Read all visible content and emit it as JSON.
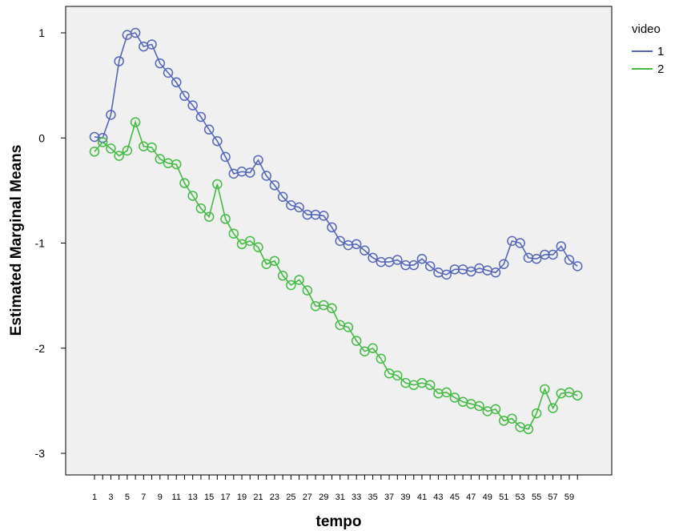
{
  "chart_data": {
    "type": "line",
    "xlabel": "tempo",
    "ylabel": "Estimated Marginal Means",
    "ylim": [
      -3.35,
      1.25
    ],
    "yticks": [
      1,
      0,
      -1,
      -2,
      -3
    ],
    "x": [
      1,
      2,
      3,
      4,
      5,
      6,
      7,
      8,
      9,
      10,
      11,
      12,
      13,
      14,
      15,
      16,
      17,
      18,
      19,
      20,
      21,
      22,
      23,
      24,
      25,
      26,
      27,
      28,
      29,
      30,
      31,
      32,
      33,
      34,
      35,
      36,
      37,
      38,
      39,
      40,
      41,
      42,
      43,
      44,
      45,
      46,
      47,
      48,
      49,
      50,
      51,
      52,
      53,
      54,
      55,
      56,
      57,
      58,
      59,
      60
    ],
    "xtick_labels": [
      "1",
      "3",
      "5",
      "7",
      "9",
      "11",
      "13",
      "15",
      "17",
      "19",
      "21",
      "23",
      "25",
      "27",
      "29",
      "31",
      "33",
      "35",
      "37",
      "39",
      "41",
      "43",
      "45",
      "47",
      "49",
      "51",
      "53",
      "55",
      "57",
      "59"
    ],
    "legend": {
      "title": "video",
      "position": "right"
    },
    "grid": false,
    "series": [
      {
        "name": "1",
        "color": "#5566bb",
        "values": [
          0.01,
          0.0,
          0.22,
          0.73,
          0.98,
          1.0,
          0.87,
          0.89,
          0.71,
          0.62,
          0.53,
          0.4,
          0.31,
          0.2,
          0.08,
          -0.03,
          -0.18,
          -0.34,
          -0.32,
          -0.33,
          -0.21,
          -0.36,
          -0.45,
          -0.56,
          -0.64,
          -0.66,
          -0.73,
          -0.73,
          -0.74,
          -0.85,
          -0.98,
          -1.02,
          -1.01,
          -1.07,
          -1.14,
          -1.18,
          -1.18,
          -1.16,
          -1.21,
          -1.21,
          -1.15,
          -1.22,
          -1.28,
          -1.3,
          -1.25,
          -1.25,
          -1.27,
          -1.24,
          -1.26,
          -1.28,
          -1.2,
          -0.98,
          -1.0,
          -1.14,
          -1.15,
          -1.11,
          -1.11,
          -1.03,
          -1.16,
          -1.22
        ]
      },
      {
        "name": "2",
        "color": "#44bb44",
        "values": [
          -0.13,
          -0.04,
          -0.1,
          -0.17,
          -0.12,
          0.15,
          -0.08,
          -0.09,
          -0.2,
          -0.24,
          -0.25,
          -0.43,
          -0.55,
          -0.67,
          -0.75,
          -0.44,
          -0.77,
          -0.91,
          -1.01,
          -0.98,
          -1.04,
          -1.2,
          -1.17,
          -1.31,
          -1.4,
          -1.35,
          -1.45,
          -1.6,
          -1.59,
          -1.62,
          -1.78,
          -1.8,
          -1.93,
          -2.03,
          -2.0,
          -2.1,
          -2.24,
          -2.26,
          -2.33,
          -2.35,
          -2.33,
          -2.35,
          -2.43,
          -2.42,
          -2.47,
          -2.51,
          -2.53,
          -2.55,
          -2.6,
          -2.58,
          -2.69,
          -2.67,
          -2.75,
          -2.77,
          -2.62,
          -2.39,
          -2.57,
          -2.43,
          -2.42,
          -2.45
        ]
      }
    ]
  }
}
